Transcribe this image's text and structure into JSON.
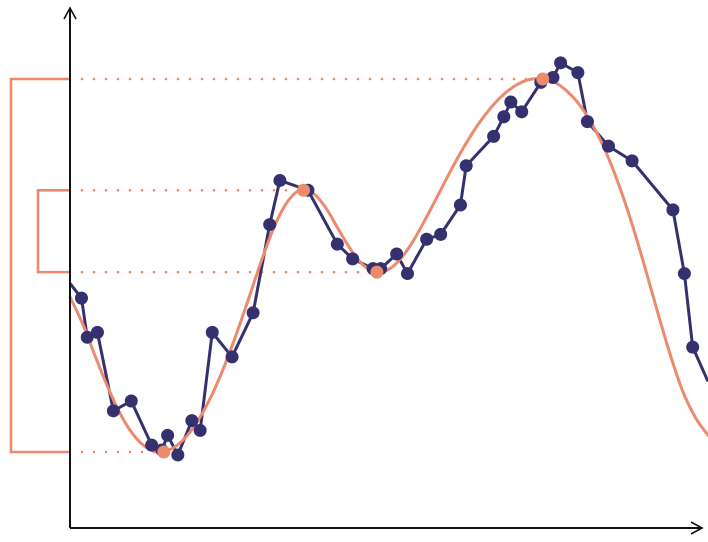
{
  "chart_data": {
    "type": "line",
    "title": "",
    "xlabel": "",
    "ylabel": "",
    "xlim": [
      0,
      100
    ],
    "ylim": [
      0,
      100
    ],
    "grid": false,
    "legend": "none",
    "colors": {
      "noisy": "#35306e",
      "smooth": "#ec8a6d",
      "axis": "#111111"
    },
    "series": [
      {
        "role": "noisy",
        "x": [
          0,
          1.8,
          2.7,
          4.3,
          6.8,
          9.6,
          12.8,
          14.4,
          15.3,
          16.9,
          19.1,
          20.4,
          22.3,
          25.4,
          28.7,
          31.3,
          32.9,
          37.3,
          41.9,
          44.3,
          47.5,
          48.7,
          51.2,
          52.9,
          55.9,
          58.1,
          61.2,
          62.1,
          66.4,
          68.0,
          69.1,
          70.8,
          73.8,
          75.7,
          76.9,
          79.6,
          81.1,
          84.4,
          88.1,
          94.5,
          96.3,
          97.6,
          100
        ],
        "y": [
          53,
          50,
          42,
          43,
          27,
          29,
          20,
          19,
          22,
          18,
          25,
          23,
          43,
          38,
          47,
          65,
          74,
          72,
          61,
          58,
          56,
          56,
          59,
          55,
          62,
          63,
          69,
          77,
          83,
          87,
          90,
          88,
          94,
          95,
          98,
          96,
          86,
          81,
          78,
          68,
          55,
          40,
          33
        ]
      },
      {
        "role": "smooth",
        "x": [
          0,
          2,
          4,
          6,
          8,
          10,
          12,
          14,
          16,
          18,
          20,
          22,
          24,
          26,
          28,
          30,
          32,
          34,
          36,
          38,
          40,
          42,
          44,
          46,
          48,
          50,
          52,
          54,
          56,
          58,
          60,
          62,
          64,
          66,
          68,
          70,
          72,
          74,
          76,
          78,
          80,
          82,
          84,
          86,
          88,
          90,
          92,
          94,
          96,
          98,
          100
        ],
        "y": [
          50.2,
          44.7,
          38.0,
          31.6,
          26.1,
          22.0,
          19.5,
          18.6,
          19.3,
          21.4,
          24.9,
          29.6,
          35.5,
          42.4,
          49.9,
          57.6,
          64.5,
          69.5,
          72.0,
          71.5,
          68.6,
          64.2,
          59.9,
          56.7,
          55.3,
          55.9,
          58.3,
          62.1,
          66.8,
          71.8,
          76.8,
          81.4,
          85.5,
          88.9,
          91.6,
          93.5,
          94.6,
          94.7,
          94.0,
          92.1,
          89.2,
          85.1,
          79.8,
          73.2,
          65.5,
          56.8,
          47.6,
          38.8,
          31.1,
          25.7,
          22.0
        ]
      }
    ],
    "extrema": [
      {
        "x": 14.7,
        "y": 18.6
      },
      {
        "x": 36.6,
        "y": 72.0
      },
      {
        "x": 48.1,
        "y": 55.3
      },
      {
        "x": 74.1,
        "y": 94.7
      }
    ]
  }
}
